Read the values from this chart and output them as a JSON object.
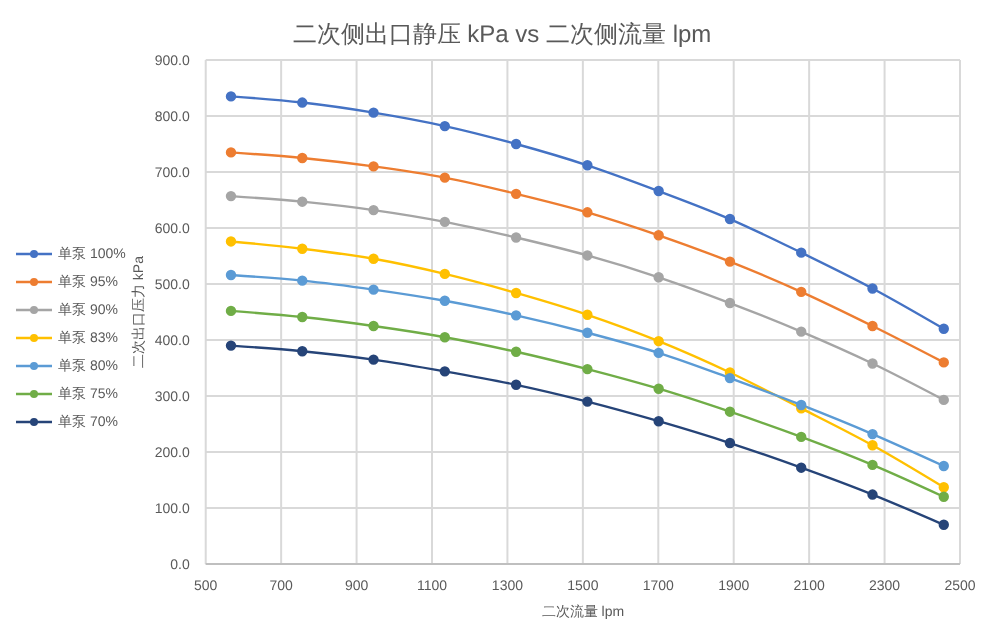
{
  "chart_data": {
    "type": "line",
    "title": "二次侧出口静压 kPa vs 二次侧流量 lpm",
    "xlabel": "二次流量 lpm",
    "ylabel": "二次出口压力 kPa",
    "x": [
      567,
      756,
      945,
      1134,
      1323,
      1512,
      1701,
      1890,
      2079,
      2268,
      2457
    ],
    "xlim": [
      500,
      2500
    ],
    "xticks": [
      500,
      700,
      900,
      1100,
      1300,
      1500,
      1700,
      1900,
      2100,
      2300,
      2500
    ],
    "ylim": [
      0,
      900
    ],
    "yticks": [
      {
        "value": 0,
        "label": "0.0"
      },
      {
        "value": 100,
        "label": "100.0"
      },
      {
        "value": 200,
        "label": "200.0"
      },
      {
        "value": 300,
        "label": "300.0"
      },
      {
        "value": 400,
        "label": "400.0"
      },
      {
        "value": 500,
        "label": "500.0"
      },
      {
        "value": 600,
        "label": "600.0"
      },
      {
        "value": 700,
        "label": "700.0"
      },
      {
        "value": 800,
        "label": "800.0"
      },
      {
        "value": 900,
        "label": "900.0"
      }
    ],
    "grid": true,
    "legend": "left",
    "marker": "circle",
    "line_style": "solid",
    "series": [
      {
        "name": "单泵 100%",
        "color": "#4472c4",
        "values": [
          835,
          824,
          806,
          782,
          750,
          712,
          666,
          616,
          556,
          492,
          420
        ]
      },
      {
        "name": "单泵 95%",
        "color": "#ed7d31",
        "values": [
          735,
          725,
          710,
          690,
          661,
          628,
          587,
          540,
          486,
          425,
          360
        ]
      },
      {
        "name": "单泵 90%",
        "color": "#a5a5a5",
        "values": [
          657,
          647,
          632,
          611,
          583,
          551,
          512,
          466,
          415,
          358,
          293
        ]
      },
      {
        "name": "单泵 83%",
        "color": "#ffc000",
        "values": [
          576,
          563,
          545,
          518,
          484,
          445,
          398,
          342,
          278,
          212,
          137
        ]
      },
      {
        "name": "单泵 80%",
        "color": "#5b9bd5",
        "values": [
          516,
          506,
          490,
          470,
          444,
          413,
          377,
          332,
          284,
          232,
          175
        ]
      },
      {
        "name": "单泵 75%",
        "color": "#70ad47",
        "values": [
          452,
          441,
          425,
          405,
          379,
          348,
          313,
          272,
          227,
          177,
          120
        ]
      },
      {
        "name": "单泵 70%",
        "color": "#264478",
        "values": [
          390,
          380,
          365,
          344,
          320,
          290,
          255,
          216,
          172,
          124,
          70
        ]
      }
    ]
  }
}
